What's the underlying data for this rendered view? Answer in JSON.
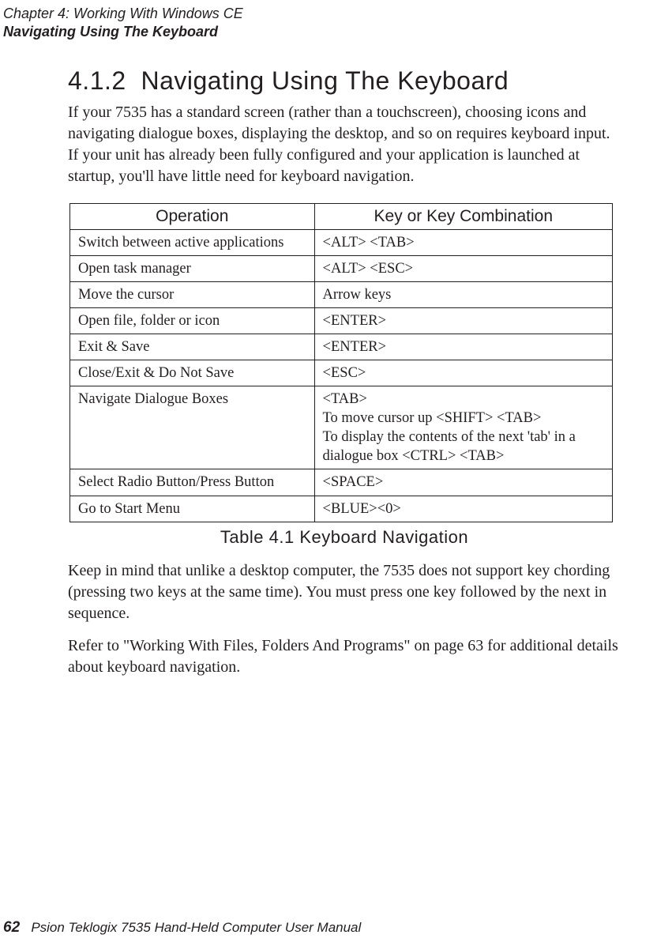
{
  "header": {
    "chapter_line": "Chapter 4: Working With Windows CE",
    "section_line": "Navigating Using The Keyboard"
  },
  "heading": {
    "number": "4.1.2",
    "title": "Navigating Using The Keyboard"
  },
  "intro_paragraph": "If your 7535 has a standard screen (rather than a touchscreen), choosing icons and navigating dialogue boxes, displaying the desktop, and so on requires keyboard input. If your unit has already been fully configured and your application is launched at startup, you'll have little need for keyboard navigation.",
  "table": {
    "headers": {
      "op": "Operation",
      "key": "Key or Key Combination"
    },
    "rows": [
      {
        "op": "Switch between active applications",
        "key": "<ALT> <TAB>"
      },
      {
        "op": "Open task manager",
        "key": "<ALT> <ESC>"
      },
      {
        "op": "Move the cursor",
        "key": "Arrow keys"
      },
      {
        "op": "Open file, folder or icon",
        "key": "<ENTER>"
      },
      {
        "op": "Exit & Save",
        "key": "<ENTER>"
      },
      {
        "op": "Close/Exit & Do Not Save",
        "key": "<ESC>"
      },
      {
        "op": "Navigate Dialogue Boxes",
        "key": "<TAB>\nTo move cursor up <SHIFT> <TAB>\nTo display the contents of the next 'tab' in a dialogue box <CTRL> <TAB>"
      },
      {
        "op": "Select Radio Button/Press Button",
        "key": "<SPACE>"
      },
      {
        "op": "Go to Start Menu",
        "key": "<BLUE><0>"
      }
    ],
    "caption": "Table 4.1  Keyboard Navigation"
  },
  "para_after_1": "Keep in mind that unlike a desktop computer, the 7535 does not support key chording (pressing two keys at the same time). You must press one key followed by the next in sequence.",
  "para_after_2": "Refer to \"Working With Files, Folders And Programs\" on page 63 for additional details about keyboard navigation.",
  "footer": {
    "page_number": "62",
    "book_title": "Psion Teklogix 7535 Hand-Held Computer User Manual"
  }
}
